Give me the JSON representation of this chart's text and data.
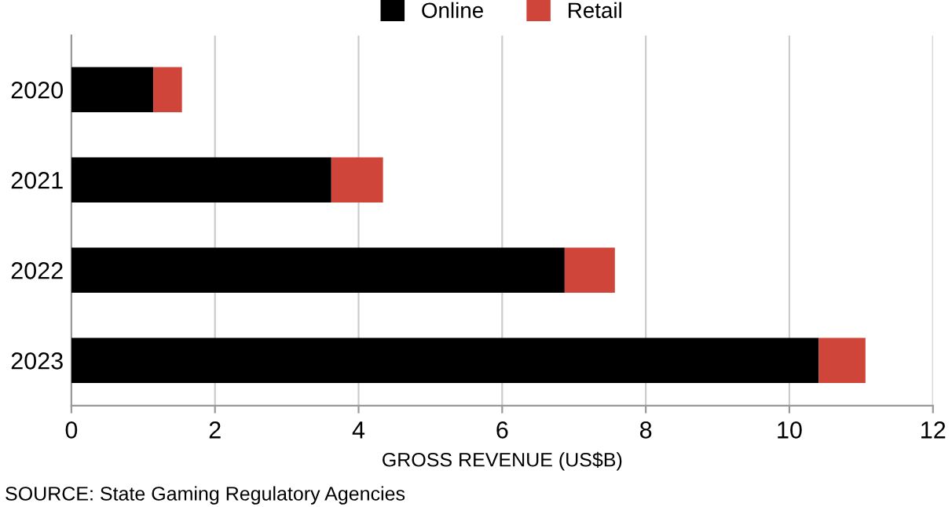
{
  "chart_data": {
    "type": "bar",
    "orientation": "horizontal",
    "stacked": true,
    "categories": [
      "2020",
      "2021",
      "2022",
      "2023"
    ],
    "series": [
      {
        "name": "Online",
        "color": "#000000",
        "values": [
          1.14,
          3.62,
          6.87,
          10.41
        ]
      },
      {
        "name": "Retail",
        "color": "#d0453a",
        "values": [
          0.4,
          0.72,
          0.7,
          0.65
        ]
      }
    ],
    "xlabel": "GROSS REVENUE (US$B)",
    "xlim": [
      0,
      12
    ],
    "xticks": [
      0,
      2,
      4,
      6,
      8,
      10,
      12
    ],
    "grid": "x",
    "legend": "top",
    "annotations": [
      "SOURCE: State Gaming Regulatory Agencies"
    ]
  }
}
